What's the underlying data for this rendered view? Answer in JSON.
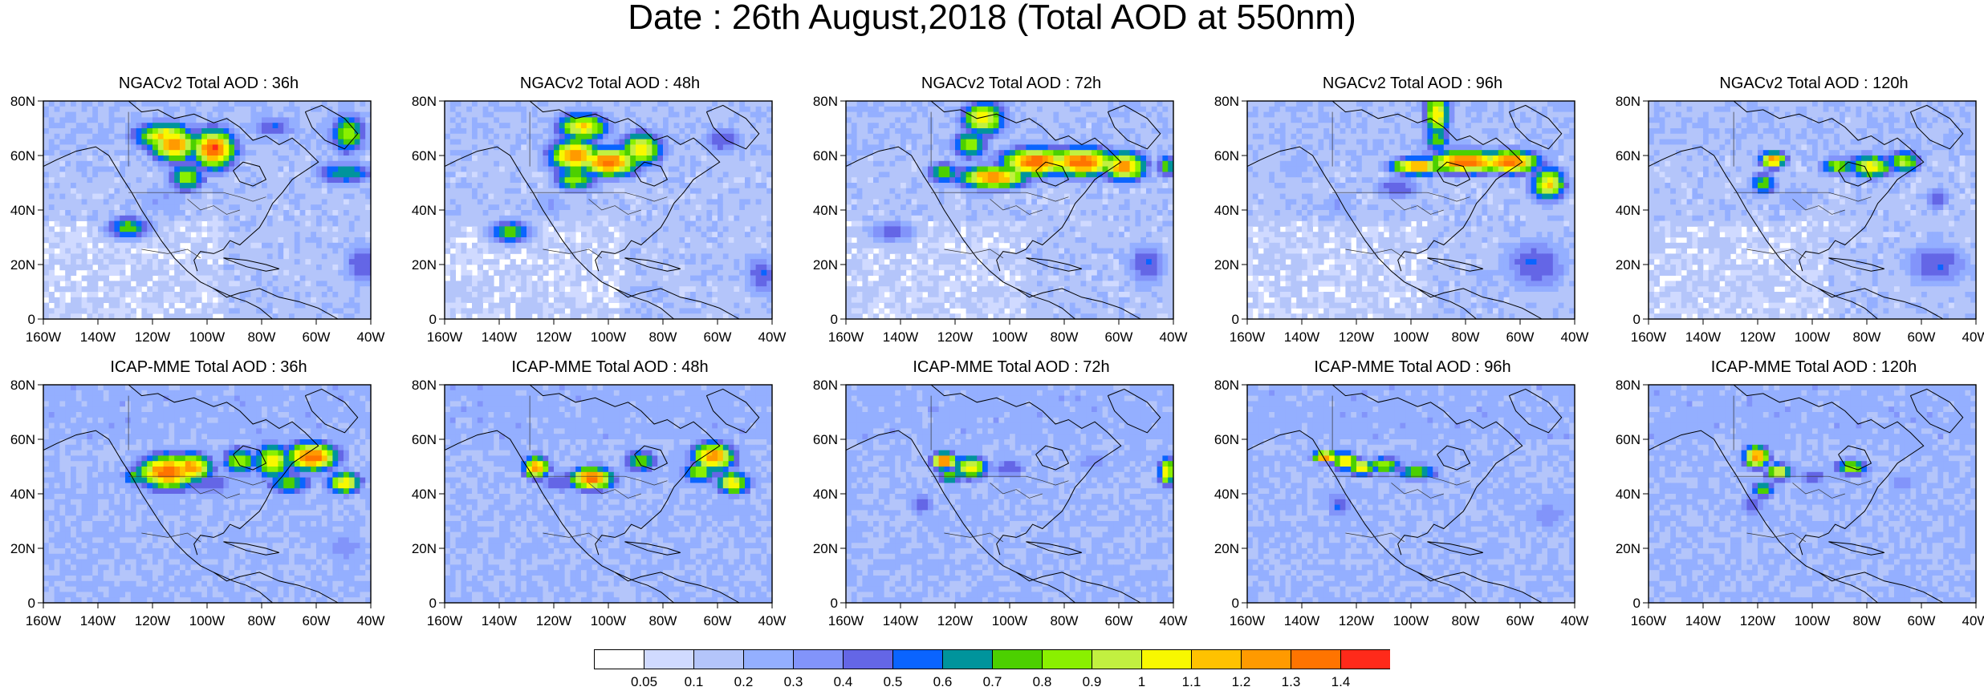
{
  "title": "Date : 26th August,2018 (Total AOD at 550nm)",
  "map_axes": {
    "x_ticks": [
      "160W",
      "140W",
      "120W",
      "100W",
      "80W",
      "60W",
      "40W"
    ],
    "y_ticks": [
      "0",
      "20N",
      "40N",
      "60N",
      "80N"
    ]
  },
  "panels": [
    {
      "title": "NGACv2 Total AOD : 36h",
      "model": "NGACv2",
      "lead": "36h",
      "plumes": [
        [
          0.4,
          0.2,
          0.055,
          0.06,
          1.3
        ],
        [
          0.52,
          0.22,
          0.05,
          0.07,
          1.4
        ],
        [
          0.37,
          0.16,
          0.07,
          0.05,
          1.1
        ],
        [
          0.44,
          0.35,
          0.04,
          0.05,
          0.9
        ],
        [
          0.26,
          0.58,
          0.05,
          0.04,
          0.8
        ],
        [
          0.93,
          0.15,
          0.04,
          0.07,
          0.9
        ],
        [
          0.7,
          0.12,
          0.06,
          0.04,
          0.5
        ],
        [
          0.92,
          0.33,
          0.07,
          0.04,
          0.7
        ],
        [
          0.97,
          0.75,
          0.04,
          0.08,
          0.5
        ],
        [
          0.36,
          0.45,
          0.09,
          0.06,
          0.3
        ]
      ]
    },
    {
      "title": "NGACv2 Total AOD : 48h",
      "model": "NGACv2",
      "lead": "48h",
      "plumes": [
        [
          0.4,
          0.25,
          0.06,
          0.06,
          1.3
        ],
        [
          0.5,
          0.28,
          0.07,
          0.05,
          1.4
        ],
        [
          0.42,
          0.12,
          0.06,
          0.05,
          1.1
        ],
        [
          0.6,
          0.22,
          0.05,
          0.06,
          1.1
        ],
        [
          0.4,
          0.36,
          0.05,
          0.04,
          0.9
        ],
        [
          0.2,
          0.6,
          0.05,
          0.04,
          0.8
        ],
        [
          0.85,
          0.18,
          0.05,
          0.05,
          0.5
        ],
        [
          0.97,
          0.8,
          0.04,
          0.08,
          0.5
        ],
        [
          0.32,
          0.48,
          0.06,
          0.05,
          0.3
        ]
      ]
    },
    {
      "title": "NGACv2 Total AOD : 72h",
      "model": "NGACv2",
      "lead": "72h",
      "plumes": [
        [
          0.45,
          0.35,
          0.08,
          0.04,
          1.3
        ],
        [
          0.58,
          0.28,
          0.08,
          0.05,
          1.4
        ],
        [
          0.72,
          0.28,
          0.08,
          0.05,
          1.4
        ],
        [
          0.85,
          0.3,
          0.05,
          0.05,
          1.3
        ],
        [
          0.42,
          0.08,
          0.05,
          0.06,
          1.1
        ],
        [
          0.38,
          0.2,
          0.04,
          0.05,
          0.9
        ],
        [
          0.3,
          0.33,
          0.04,
          0.04,
          0.8
        ],
        [
          0.98,
          0.3,
          0.02,
          0.04,
          0.8
        ],
        [
          0.14,
          0.6,
          0.06,
          0.04,
          0.5
        ],
        [
          0.92,
          0.75,
          0.05,
          0.08,
          0.5
        ]
      ]
    },
    {
      "title": "NGACv2 Total AOD : 96h",
      "model": "NGACv2",
      "lead": "96h",
      "plumes": [
        [
          0.52,
          0.3,
          0.06,
          0.03,
          1.3
        ],
        [
          0.67,
          0.28,
          0.09,
          0.04,
          1.4
        ],
        [
          0.8,
          0.28,
          0.07,
          0.04,
          1.4
        ],
        [
          0.92,
          0.38,
          0.04,
          0.06,
          1.1
        ],
        [
          0.58,
          0.06,
          0.03,
          0.08,
          1.1
        ],
        [
          0.58,
          0.18,
          0.03,
          0.04,
          0.8
        ],
        [
          0.46,
          0.4,
          0.06,
          0.04,
          0.5
        ],
        [
          0.88,
          0.75,
          0.08,
          0.1,
          0.5
        ],
        [
          0.28,
          0.48,
          0.05,
          0.05,
          0.3
        ],
        [
          0.15,
          0.3,
          0.05,
          0.05,
          0.3
        ]
      ]
    },
    {
      "title": "NGACv2 Total AOD : 120h",
      "model": "NGACv2",
      "lead": "120h",
      "plumes": [
        [
          0.38,
          0.27,
          0.03,
          0.03,
          1.3
        ],
        [
          0.68,
          0.3,
          0.05,
          0.04,
          1.1
        ],
        [
          0.58,
          0.3,
          0.04,
          0.03,
          0.9
        ],
        [
          0.78,
          0.28,
          0.04,
          0.04,
          0.9
        ],
        [
          0.35,
          0.38,
          0.03,
          0.04,
          0.8
        ],
        [
          0.88,
          0.45,
          0.03,
          0.04,
          0.5
        ],
        [
          0.88,
          0.75,
          0.08,
          0.08,
          0.5
        ],
        [
          0.45,
          0.45,
          0.05,
          0.05,
          0.3
        ]
      ]
    },
    {
      "title": "ICAP-MME Total AOD : 36h",
      "model": "ICAP-MME",
      "lead": "36h",
      "plumes": [
        [
          0.38,
          0.4,
          0.07,
          0.06,
          1.4
        ],
        [
          0.45,
          0.38,
          0.05,
          0.05,
          1.3
        ],
        [
          0.7,
          0.35,
          0.04,
          0.06,
          1.1
        ],
        [
          0.82,
          0.33,
          0.06,
          0.05,
          1.4
        ],
        [
          0.92,
          0.45,
          0.04,
          0.04,
          1.1
        ],
        [
          0.28,
          0.42,
          0.03,
          0.03,
          0.8
        ],
        [
          0.6,
          0.35,
          0.04,
          0.05,
          0.9
        ],
        [
          0.75,
          0.45,
          0.05,
          0.04,
          0.8
        ],
        [
          0.5,
          0.45,
          0.07,
          0.05,
          0.5
        ],
        [
          0.92,
          0.75,
          0.05,
          0.06,
          0.4
        ]
      ]
    },
    {
      "title": "ICAP-MME Total AOD : 48h",
      "model": "ICAP-MME",
      "lead": "48h",
      "plumes": [
        [
          0.45,
          0.43,
          0.05,
          0.04,
          1.4
        ],
        [
          0.28,
          0.38,
          0.03,
          0.04,
          1.3
        ],
        [
          0.82,
          0.33,
          0.05,
          0.05,
          1.3
        ],
        [
          0.88,
          0.45,
          0.04,
          0.04,
          1.1
        ],
        [
          0.6,
          0.35,
          0.04,
          0.04,
          0.8
        ],
        [
          0.78,
          0.4,
          0.04,
          0.04,
          0.9
        ],
        [
          0.35,
          0.45,
          0.05,
          0.04,
          0.5
        ]
      ]
    },
    {
      "title": "ICAP-MME Total AOD : 72h",
      "model": "ICAP-MME",
      "lead": "72h",
      "plumes": [
        [
          0.3,
          0.35,
          0.03,
          0.03,
          1.4
        ],
        [
          0.38,
          0.38,
          0.04,
          0.04,
          1.1
        ],
        [
          0.98,
          0.4,
          0.02,
          0.05,
          1.1
        ],
        [
          0.32,
          0.42,
          0.03,
          0.03,
          0.8
        ],
        [
          0.5,
          0.38,
          0.04,
          0.04,
          0.5
        ],
        [
          0.23,
          0.55,
          0.03,
          0.04,
          0.5
        ],
        [
          0.75,
          0.35,
          0.04,
          0.04,
          0.4
        ]
      ]
    },
    {
      "title": "ICAP-MME Total AOD : 96h",
      "model": "ICAP-MME",
      "lead": "96h",
      "plumes": [
        [
          0.24,
          0.33,
          0.03,
          0.02,
          1.4
        ],
        [
          0.3,
          0.35,
          0.03,
          0.03,
          1.2
        ],
        [
          0.35,
          0.38,
          0.03,
          0.03,
          1.1
        ],
        [
          0.42,
          0.37,
          0.04,
          0.03,
          0.9
        ],
        [
          0.52,
          0.4,
          0.05,
          0.03,
          0.8
        ],
        [
          0.28,
          0.55,
          0.03,
          0.05,
          0.5
        ],
        [
          0.92,
          0.6,
          0.05,
          0.06,
          0.4
        ]
      ]
    },
    {
      "title": "ICAP-MME Total AOD : 120h",
      "model": "ICAP-MME",
      "lead": "120h",
      "plumes": [
        [
          0.33,
          0.33,
          0.03,
          0.04,
          1.3
        ],
        [
          0.4,
          0.4,
          0.03,
          0.03,
          1.1
        ],
        [
          0.62,
          0.38,
          0.04,
          0.03,
          0.9
        ],
        [
          0.35,
          0.48,
          0.03,
          0.03,
          0.8
        ],
        [
          0.5,
          0.42,
          0.04,
          0.03,
          0.5
        ],
        [
          0.32,
          0.55,
          0.03,
          0.05,
          0.5
        ],
        [
          0.78,
          0.45,
          0.04,
          0.04,
          0.4
        ]
      ]
    }
  ],
  "colorbar": {
    "labels": [
      "0.05",
      "0.1",
      "0.2",
      "0.3",
      "0.4",
      "0.5",
      "0.6",
      "0.7",
      "0.8",
      "0.9",
      "1",
      "1.1",
      "1.2",
      "1.3",
      "1.4"
    ],
    "colors": [
      "#ffffff",
      "#d0daff",
      "#b4c5fa",
      "#94afff",
      "#8294fa",
      "#6466e6",
      "#0a64ff",
      "#00949c",
      "#4cd000",
      "#8af000",
      "#c2f040",
      "#f8f800",
      "#ffc200",
      "#ff9a00",
      "#ff7400",
      "#ff2a1a"
    ]
  }
}
